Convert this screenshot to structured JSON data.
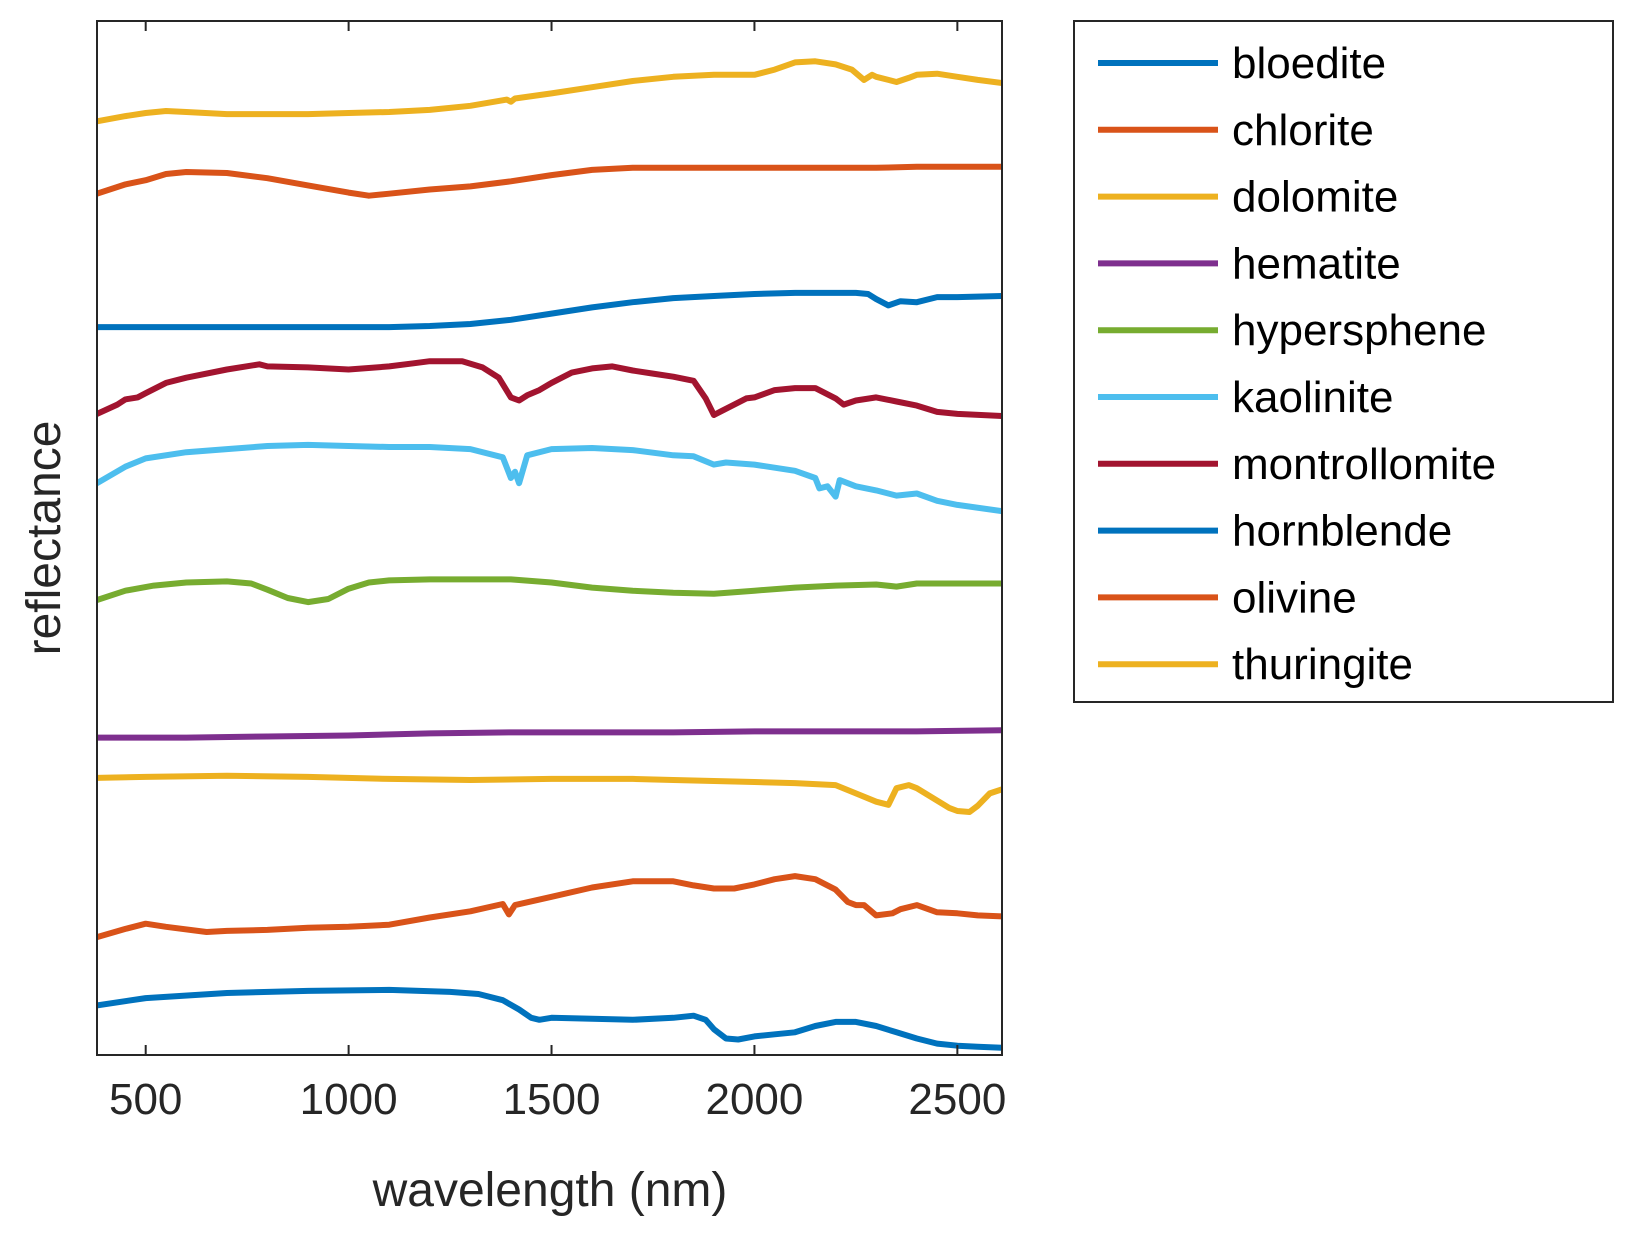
{
  "chart_data": {
    "type": "line",
    "title": "",
    "xlabel": "wavelength (nm)",
    "ylabel": "reflectance",
    "xlim": [
      380,
      2610
    ],
    "ylim": [
      0,
      100
    ],
    "xticks": [
      500,
      1000,
      1500,
      2000,
      2500
    ],
    "xtick_labels": [
      "500",
      "1000",
      "1500",
      "2000",
      "2500"
    ],
    "yticks": [],
    "grid": false,
    "legend_position": "outside-right-top",
    "series": [
      {
        "name": "bloedite",
        "color": "#0072BD",
        "x": [
          380,
          500,
          700,
          900,
          1100,
          1250,
          1320,
          1380,
          1420,
          1450,
          1470,
          1500,
          1600,
          1700,
          1800,
          1850,
          1880,
          1900,
          1930,
          1960,
          2000,
          2050,
          2100,
          2150,
          2200,
          2250,
          2300,
          2350,
          2400,
          2450,
          2500,
          2550,
          2610
        ],
        "y": [
          4.8,
          5.5,
          6.0,
          6.2,
          6.3,
          6.1,
          5.9,
          5.3,
          4.4,
          3.6,
          3.4,
          3.6,
          3.5,
          3.4,
          3.6,
          3.8,
          3.4,
          2.5,
          1.6,
          1.5,
          1.8,
          2.0,
          2.2,
          2.8,
          3.2,
          3.2,
          2.8,
          2.2,
          1.6,
          1.1,
          0.9,
          0.8,
          0.7
        ]
      },
      {
        "name": "chlorite",
        "color": "#D95319",
        "x": [
          380,
          450,
          500,
          550,
          650,
          700,
          800,
          900,
          1000,
          1100,
          1200,
          1300,
          1380,
          1395,
          1410,
          1500,
          1600,
          1700,
          1800,
          1850,
          1900,
          1950,
          2000,
          2050,
          2100,
          2150,
          2200,
          2230,
          2250,
          2270,
          2300,
          2340,
          2360,
          2400,
          2450,
          2500,
          2550,
          2610
        ],
        "y": [
          11.4,
          12.2,
          12.7,
          12.4,
          11.9,
          12.0,
          12.1,
          12.3,
          12.4,
          12.6,
          13.3,
          13.9,
          14.6,
          13.6,
          14.5,
          15.3,
          16.2,
          16.8,
          16.8,
          16.4,
          16.1,
          16.1,
          16.5,
          17.0,
          17.3,
          17.0,
          16.0,
          14.8,
          14.5,
          14.5,
          13.5,
          13.7,
          14.1,
          14.5,
          13.8,
          13.7,
          13.5,
          13.4
        ]
      },
      {
        "name": "dolomite",
        "color": "#EDB120",
        "x": [
          380,
          500,
          700,
          900,
          1100,
          1300,
          1500,
          1700,
          1800,
          1900,
          2000,
          2100,
          2200,
          2250,
          2300,
          2330,
          2350,
          2380,
          2400,
          2450,
          2480,
          2500,
          2530,
          2550,
          2580,
          2610
        ],
        "y": [
          26.8,
          26.9,
          27.0,
          26.9,
          26.7,
          26.6,
          26.7,
          26.7,
          26.6,
          26.5,
          26.4,
          26.3,
          26.1,
          25.3,
          24.5,
          24.2,
          25.8,
          26.1,
          25.8,
          24.6,
          23.9,
          23.6,
          23.5,
          24.1,
          25.3,
          25.7
        ]
      },
      {
        "name": "hematite",
        "color": "#7E2F8E",
        "x": [
          380,
          600,
          800,
          1000,
          1200,
          1400,
          1600,
          1800,
          2000,
          2200,
          2400,
          2610
        ],
        "y": [
          30.7,
          30.7,
          30.8,
          30.9,
          31.1,
          31.2,
          31.2,
          31.2,
          31.3,
          31.3,
          31.3,
          31.4
        ]
      },
      {
        "name": "hypersphene",
        "color": "#77AC30",
        "x": [
          380,
          450,
          520,
          600,
          700,
          760,
          800,
          850,
          900,
          950,
          1000,
          1050,
          1100,
          1200,
          1300,
          1400,
          1500,
          1600,
          1700,
          1800,
          1900,
          2000,
          2100,
          2200,
          2300,
          2350,
          2400,
          2500,
          2610
        ],
        "y": [
          44.0,
          44.9,
          45.4,
          45.7,
          45.8,
          45.6,
          45.0,
          44.2,
          43.8,
          44.1,
          45.1,
          45.7,
          45.9,
          46.0,
          46.0,
          46.0,
          45.7,
          45.2,
          44.9,
          44.7,
          44.6,
          44.9,
          45.2,
          45.4,
          45.5,
          45.3,
          45.6,
          45.6,
          45.6
        ]
      },
      {
        "name": "kaolinite",
        "color": "#4DBEEE",
        "x": [
          380,
          450,
          500,
          600,
          700,
          800,
          900,
          1000,
          1100,
          1200,
          1300,
          1380,
          1400,
          1410,
          1420,
          1440,
          1500,
          1600,
          1700,
          1800,
          1850,
          1900,
          1930,
          2000,
          2100,
          2150,
          2160,
          2180,
          2200,
          2210,
          2230,
          2250,
          2300,
          2350,
          2400,
          2450,
          2500,
          2610
        ],
        "y": [
          55.3,
          56.9,
          57.7,
          58.3,
          58.6,
          58.9,
          59.0,
          58.9,
          58.8,
          58.8,
          58.6,
          57.8,
          55.8,
          56.4,
          55.3,
          58.0,
          58.6,
          58.7,
          58.5,
          58.0,
          57.9,
          57.1,
          57.3,
          57.1,
          56.5,
          55.8,
          54.8,
          55.0,
          54.0,
          55.6,
          55.3,
          55.0,
          54.6,
          54.1,
          54.3,
          53.6,
          53.2,
          52.6
        ]
      },
      {
        "name": "montrollomite",
        "color": "#A2142F",
        "x": [
          380,
          430,
          450,
          480,
          500,
          550,
          600,
          700,
          780,
          800,
          900,
          1000,
          1100,
          1160,
          1200,
          1280,
          1330,
          1370,
          1400,
          1420,
          1440,
          1470,
          1500,
          1550,
          1600,
          1650,
          1700,
          1750,
          1800,
          1850,
          1880,
          1900,
          1920,
          1940,
          1980,
          2000,
          2050,
          2100,
          2150,
          2200,
          2220,
          2250,
          2300,
          2350,
          2400,
          2450,
          2500,
          2610
        ],
        "y": [
          62.0,
          62.9,
          63.4,
          63.6,
          64.0,
          65.0,
          65.5,
          66.3,
          66.8,
          66.6,
          66.5,
          66.3,
          66.6,
          66.9,
          67.1,
          67.1,
          66.5,
          65.5,
          63.6,
          63.3,
          63.8,
          64.3,
          65.0,
          66.0,
          66.4,
          66.6,
          66.2,
          65.9,
          65.6,
          65.2,
          63.5,
          61.9,
          62.3,
          62.7,
          63.5,
          63.6,
          64.3,
          64.5,
          64.5,
          63.5,
          62.9,
          63.3,
          63.6,
          63.2,
          62.8,
          62.2,
          62.0,
          61.8
        ]
      },
      {
        "name": "hornblende",
        "color": "#0072BD",
        "x": [
          380,
          500,
          700,
          900,
          1100,
          1200,
          1300,
          1400,
          1500,
          1600,
          1700,
          1800,
          1900,
          2000,
          2100,
          2200,
          2250,
          2280,
          2300,
          2330,
          2360,
          2400,
          2450,
          2500,
          2610
        ],
        "y": [
          70.4,
          70.4,
          70.4,
          70.4,
          70.4,
          70.5,
          70.7,
          71.1,
          71.7,
          72.3,
          72.8,
          73.2,
          73.4,
          73.6,
          73.7,
          73.7,
          73.7,
          73.6,
          73.1,
          72.5,
          72.9,
          72.8,
          73.3,
          73.3,
          73.4
        ]
      },
      {
        "name": "olivine",
        "color": "#D95319",
        "x": [
          380,
          450,
          500,
          550,
          600,
          700,
          800,
          900,
          1000,
          1050,
          1100,
          1200,
          1300,
          1400,
          1500,
          1600,
          1700,
          1800,
          2000,
          2100,
          2200,
          2300,
          2400,
          2500,
          2610
        ],
        "y": [
          83.3,
          84.2,
          84.6,
          85.2,
          85.4,
          85.3,
          84.8,
          84.1,
          83.4,
          83.1,
          83.3,
          83.7,
          84.0,
          84.5,
          85.1,
          85.6,
          85.8,
          85.8,
          85.8,
          85.8,
          85.8,
          85.8,
          85.9,
          85.9,
          85.9
        ]
      },
      {
        "name": "thuringite",
        "color": "#EDB120",
        "x": [
          380,
          450,
          500,
          550,
          600,
          700,
          800,
          900,
          1000,
          1100,
          1200,
          1300,
          1390,
          1400,
          1410,
          1500,
          1600,
          1700,
          1800,
          1900,
          2000,
          2050,
          2100,
          2150,
          2200,
          2240,
          2270,
          2290,
          2300,
          2330,
          2350,
          2380,
          2400,
          2450,
          2500,
          2550,
          2610
        ],
        "y": [
          90.3,
          90.8,
          91.1,
          91.3,
          91.2,
          91.0,
          91.0,
          91.0,
          91.1,
          91.2,
          91.4,
          91.8,
          92.4,
          92.2,
          92.5,
          93.0,
          93.6,
          94.2,
          94.6,
          94.8,
          94.8,
          95.3,
          96.0,
          96.1,
          95.8,
          95.3,
          94.3,
          94.8,
          94.6,
          94.3,
          94.1,
          94.5,
          94.8,
          94.9,
          94.6,
          94.3,
          94.0
        ]
      }
    ]
  }
}
